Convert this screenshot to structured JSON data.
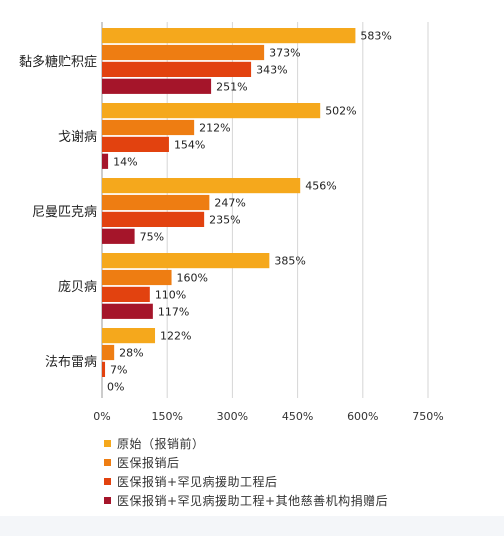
{
  "chart_data": {
    "type": "bar",
    "orientation": "horizontal",
    "categories": [
      "黏多糖贮积症",
      "戈谢病",
      "尼曼匹克病",
      "庞贝病",
      "法布雷病"
    ],
    "series": [
      {
        "name": "原始（报销前）",
        "color": "#f5a81c",
        "values": [
          583,
          502,
          456,
          385,
          122
        ]
      },
      {
        "name": "医保报销后",
        "color": "#ee7d12",
        "values": [
          373,
          212,
          247,
          160,
          28
        ]
      },
      {
        "name": "医保报销+罕见病援助工程后",
        "color": "#e2420f",
        "values": [
          343,
          154,
          235,
          110,
          7
        ]
      },
      {
        "name": "医保报销+罕见病援助工程+其他慈善机构捐赠后",
        "color": "#a5152a",
        "values": [
          251,
          14,
          75,
          117,
          0
        ]
      }
    ],
    "value_suffix": "%",
    "xlim": [
      0,
      750
    ],
    "xticks": [
      "0%",
      "150%",
      "300%",
      "450%",
      "600%",
      "750%"
    ],
    "grid": "vertical",
    "legend_position": "bottom"
  }
}
